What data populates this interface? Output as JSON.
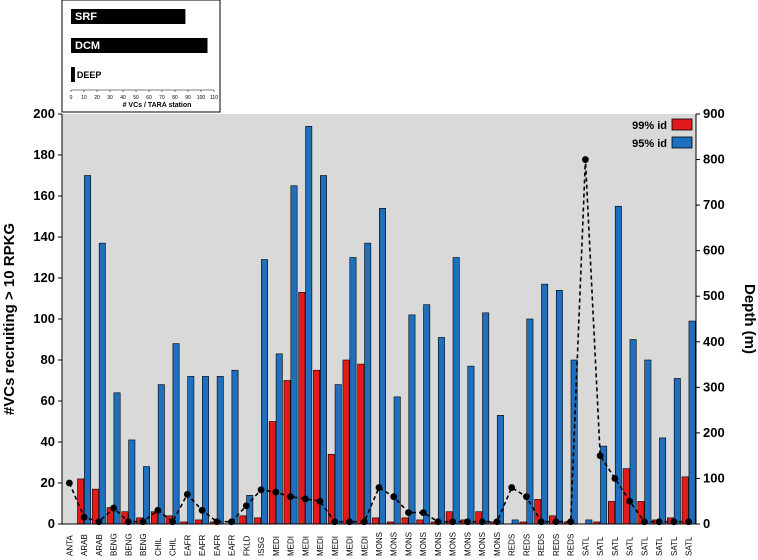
{
  "chart_data": {
    "type": "bar",
    "categories": [
      "ANTA",
      "ARAB",
      "ARAB",
      "BENG",
      "BENG",
      "BENG",
      "CHIL",
      "CHIL",
      "EAFR",
      "EAFR",
      "EAFR",
      "EAFR",
      "FKLD",
      "ISSG",
      "MEDI",
      "MEDI",
      "MEDI",
      "MEDI",
      "MEDI",
      "MEDI",
      "MEDI",
      "MONS",
      "MONS",
      "MONS",
      "MONS",
      "MONS",
      "MONS",
      "MONS",
      "MONS",
      "MONS",
      "REDS",
      "REDS",
      "REDS",
      "REDS",
      "REDS",
      "SATL",
      "SATL",
      "SATL",
      "SATL",
      "SATL",
      "SATL",
      "SATL",
      "SATL"
    ],
    "series": [
      {
        "name": "99% id",
        "color": "#e31a1c",
        "axis": "left",
        "values": [
          0,
          22,
          17,
          8,
          6,
          3,
          6,
          4,
          1,
          2,
          1,
          0,
          4,
          3,
          50,
          70,
          113,
          75,
          34,
          80,
          78,
          3,
          1,
          3,
          2,
          1,
          6,
          2,
          6,
          1,
          0,
          1,
          12,
          4,
          1,
          0,
          1,
          11,
          27,
          11,
          2,
          3,
          23
        ]
      },
      {
        "name": "95% id",
        "color": "#1f6fbf",
        "axis": "left",
        "values": [
          0,
          170,
          137,
          64,
          41,
          28,
          68,
          88,
          72,
          72,
          72,
          75,
          14,
          129,
          83,
          165,
          194,
          170,
          68,
          130,
          137,
          154,
          62,
          102,
          107,
          91,
          130,
          77,
          103,
          53,
          2,
          100,
          117,
          114,
          80,
          2,
          38,
          155,
          90,
          80,
          42,
          71,
          99
        ]
      },
      {
        "name": "Depth",
        "color": "#000000",
        "axis": "right",
        "style": "dashed-dots",
        "values": [
          90,
          15,
          5,
          35,
          5,
          5,
          30,
          5,
          65,
          30,
          5,
          5,
          40,
          75,
          70,
          60,
          55,
          50,
          5,
          5,
          5,
          80,
          60,
          25,
          25,
          5,
          5,
          5,
          5,
          5,
          80,
          60,
          5,
          5,
          5,
          800,
          150,
          100,
          50,
          5,
          5,
          5,
          5
        ]
      }
    ],
    "ylabel": "#VCs recruiting > 10 RPKG",
    "y2label": "Depth (m)",
    "ylim": [
      0,
      200
    ],
    "y2lim": [
      0,
      900
    ],
    "yticks": [
      "0",
      "20",
      "40",
      "60",
      "80",
      "100",
      "120",
      "140",
      "160",
      "180",
      "200"
    ],
    "y2ticks": [
      "0",
      "100",
      "200",
      "300",
      "400",
      "500",
      "600",
      "700",
      "800",
      "900"
    ],
    "grid": false,
    "legend": "top-right",
    "inset": {
      "type": "bar",
      "orientation": "horizontal",
      "categories": [
        "SRF",
        "DCM",
        "DEEP"
      ],
      "values": [
        88,
        105,
        3
      ],
      "xlabel": "# VCs / TARA station",
      "xticks": [
        "0",
        "10",
        "20",
        "30",
        "40",
        "50",
        "60",
        "70",
        "80",
        "90",
        "100",
        "110"
      ],
      "xlim": [
        0,
        110
      ]
    }
  }
}
